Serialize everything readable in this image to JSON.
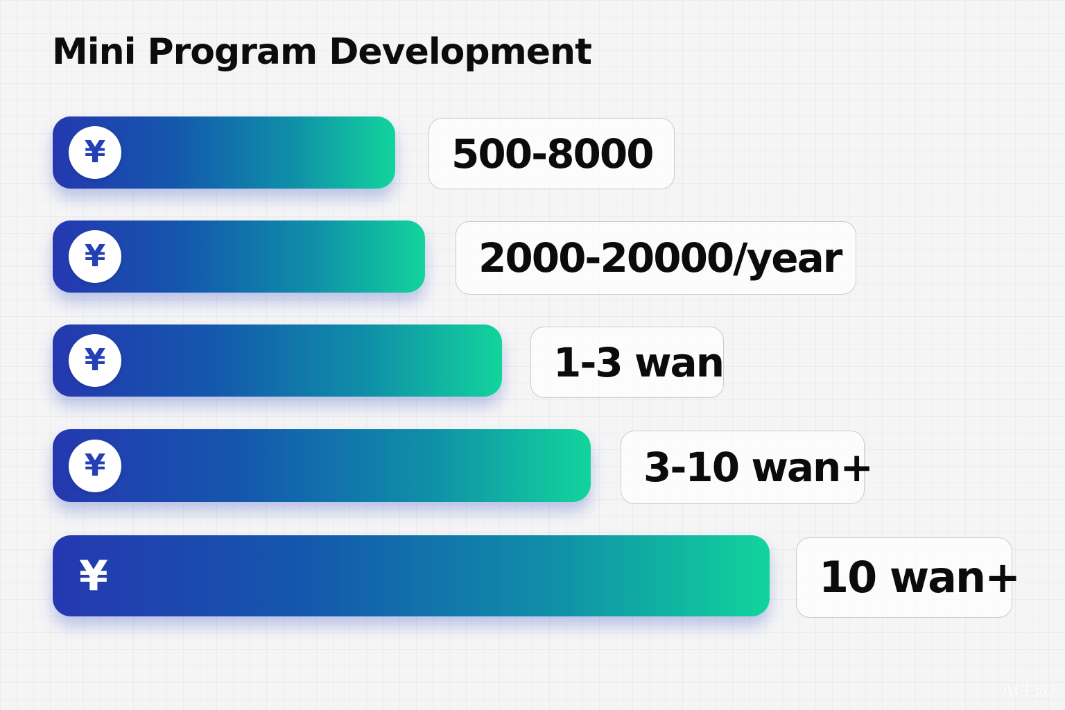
{
  "title": "Mini Program Development",
  "currency_symbol": "¥",
  "colors": {
    "bar_start": "#2538b0",
    "bar_end": "#12d49c",
    "text": "#0b0b0d",
    "icon": "#2340b5"
  },
  "chart_data": {
    "type": "bar",
    "orientation": "horizontal",
    "title": "Mini Program Development",
    "categories": [
      "500-8000",
      "2000-20000/year",
      "1-3 wan",
      "3-10 wan+",
      "10 wan+"
    ],
    "labels": [
      "500-8000",
      "2000-20000/year",
      "1-3 wan",
      "3-10 wan+",
      "10 wan+"
    ],
    "values": [
      1,
      2,
      3,
      4,
      5
    ],
    "grid": true,
    "legend": "none"
  },
  "watermark": "AI生成"
}
